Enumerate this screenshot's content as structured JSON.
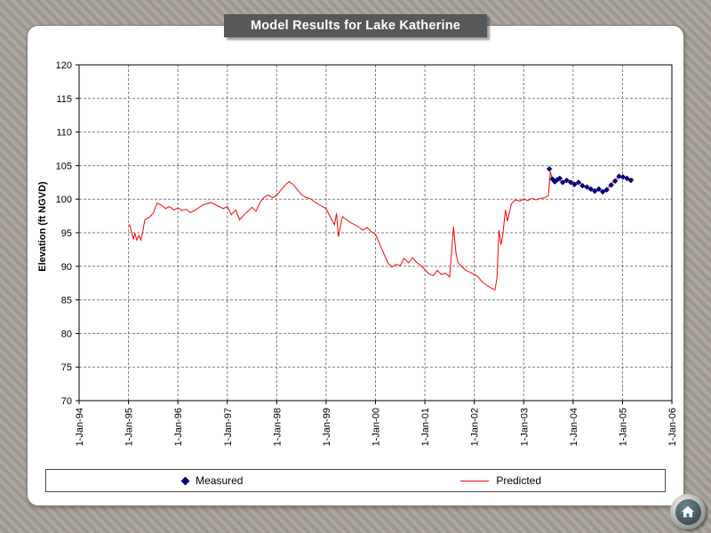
{
  "colors": {
    "banner_bg": "#57585A",
    "panel_bg": "#FFFFFF",
    "predicted": "#FF0000",
    "measured": "#000080"
  },
  "icons": {
    "home": "house-glyph"
  },
  "chart_data": {
    "type": "line",
    "title": "Model Results for Lake Katherine",
    "ylabel": "Elevation (ft NGVD)",
    "xlabel": "",
    "ylim": [
      70,
      120
    ],
    "ytick_step": 5,
    "xlim": [
      1994,
      2006
    ],
    "x_encoding": "decimal_year",
    "x_ticks": [
      "1-Jan-94",
      "1-Jan-95",
      "1-Jan-96",
      "1-Jan-97",
      "1-Jan-98",
      "1-Jan-99",
      "1-Jan-00",
      "1-Jan-01",
      "1-Jan-02",
      "1-Jan-03",
      "1-Jan-04",
      "1-Jan-05",
      "1-Jan-06"
    ],
    "grid": "dashed",
    "legend_position": "bottom",
    "series": [
      {
        "name": "Predicted",
        "type": "line",
        "color": "#FF0000",
        "points": [
          [
            1995.02,
            96.3
          ],
          [
            1995.06,
            95.1
          ],
          [
            1995.1,
            94.1
          ],
          [
            1995.13,
            94.9
          ],
          [
            1995.17,
            93.9
          ],
          [
            1995.21,
            94.6
          ],
          [
            1995.25,
            93.9
          ],
          [
            1995.29,
            95.2
          ],
          [
            1995.33,
            96.9
          ],
          [
            1995.42,
            97.3
          ],
          [
            1995.5,
            97.9
          ],
          [
            1995.58,
            99.4
          ],
          [
            1995.67,
            99.1
          ],
          [
            1995.75,
            98.6
          ],
          [
            1995.83,
            98.9
          ],
          [
            1995.92,
            98.4
          ],
          [
            1996.0,
            98.7
          ],
          [
            1996.08,
            98.3
          ],
          [
            1996.17,
            98.5
          ],
          [
            1996.25,
            98.0
          ],
          [
            1996.33,
            98.3
          ],
          [
            1996.42,
            98.7
          ],
          [
            1996.5,
            99.1
          ],
          [
            1996.58,
            99.3
          ],
          [
            1996.67,
            99.5
          ],
          [
            1996.75,
            99.2
          ],
          [
            1996.83,
            98.9
          ],
          [
            1996.92,
            98.6
          ],
          [
            1997.0,
            98.9
          ],
          [
            1997.08,
            97.7
          ],
          [
            1997.17,
            98.4
          ],
          [
            1997.25,
            96.9
          ],
          [
            1997.33,
            97.6
          ],
          [
            1997.42,
            98.2
          ],
          [
            1997.5,
            98.8
          ],
          [
            1997.58,
            98.2
          ],
          [
            1997.67,
            99.6
          ],
          [
            1997.75,
            100.3
          ],
          [
            1997.83,
            100.6
          ],
          [
            1997.92,
            100.2
          ],
          [
            1998.0,
            100.6
          ],
          [
            1998.08,
            101.3
          ],
          [
            1998.17,
            102.1
          ],
          [
            1998.25,
            102.6
          ],
          [
            1998.33,
            102.2
          ],
          [
            1998.42,
            101.4
          ],
          [
            1998.5,
            100.7
          ],
          [
            1998.58,
            100.3
          ],
          [
            1998.67,
            100.1
          ],
          [
            1998.75,
            99.7
          ],
          [
            1998.83,
            99.3
          ],
          [
            1998.92,
            98.9
          ],
          [
            1999.0,
            98.6
          ],
          [
            1999.08,
            97.4
          ],
          [
            1999.17,
            96.2
          ],
          [
            1999.21,
            97.9
          ],
          [
            1999.25,
            94.4
          ],
          [
            1999.33,
            97.4
          ],
          [
            1999.42,
            96.9
          ],
          [
            1999.5,
            96.5
          ],
          [
            1999.58,
            96.2
          ],
          [
            1999.67,
            95.8
          ],
          [
            1999.75,
            95.4
          ],
          [
            1999.83,
            95.8
          ],
          [
            1999.92,
            95.1
          ],
          [
            2000.0,
            94.8
          ],
          [
            2000.08,
            93.4
          ],
          [
            2000.17,
            91.9
          ],
          [
            2000.25,
            90.5
          ],
          [
            2000.33,
            89.9
          ],
          [
            2000.42,
            90.3
          ],
          [
            2000.5,
            90.1
          ],
          [
            2000.58,
            91.2
          ],
          [
            2000.67,
            90.5
          ],
          [
            2000.75,
            91.3
          ],
          [
            2000.83,
            90.6
          ],
          [
            2000.92,
            90.1
          ],
          [
            2001.0,
            89.5
          ],
          [
            2001.08,
            88.9
          ],
          [
            2001.17,
            88.6
          ],
          [
            2001.25,
            89.4
          ],
          [
            2001.33,
            88.8
          ],
          [
            2001.42,
            89.0
          ],
          [
            2001.5,
            88.4
          ],
          [
            2001.58,
            95.9
          ],
          [
            2001.63,
            91.9
          ],
          [
            2001.67,
            90.6
          ],
          [
            2001.75,
            89.9
          ],
          [
            2001.83,
            89.4
          ],
          [
            2001.92,
            89.1
          ],
          [
            2002.0,
            88.8
          ],
          [
            2002.08,
            88.4
          ],
          [
            2002.17,
            87.6
          ],
          [
            2002.25,
            87.2
          ],
          [
            2002.33,
            86.8
          ],
          [
            2002.42,
            86.5
          ],
          [
            2002.46,
            88.3
          ],
          [
            2002.5,
            95.4
          ],
          [
            2002.54,
            93.2
          ],
          [
            2002.58,
            94.9
          ],
          [
            2002.63,
            98.4
          ],
          [
            2002.67,
            96.7
          ],
          [
            2002.75,
            99.3
          ],
          [
            2002.83,
            99.9
          ],
          [
            2002.92,
            99.7
          ],
          [
            2003.0,
            100.0
          ],
          [
            2003.08,
            99.8
          ],
          [
            2003.17,
            100.1
          ],
          [
            2003.25,
            99.9
          ],
          [
            2003.33,
            100.1
          ],
          [
            2003.42,
            100.2
          ],
          [
            2003.5,
            100.5
          ],
          [
            2003.54,
            104.1
          ],
          [
            2003.58,
            102.9
          ],
          [
            2003.63,
            102.5
          ],
          [
            2003.7,
            102.9
          ],
          [
            2003.79,
            102.6
          ],
          [
            2003.87,
            102.9
          ],
          [
            2003.95,
            102.6
          ],
          [
            2004.03,
            102.3
          ],
          [
            2004.11,
            102.6
          ],
          [
            2004.19,
            102.1
          ],
          [
            2004.28,
            101.8
          ],
          [
            2004.36,
            101.5
          ],
          [
            2004.44,
            101.2
          ],
          [
            2004.52,
            101.4
          ],
          [
            2004.6,
            101.1
          ],
          [
            2004.68,
            101.5
          ],
          [
            2004.77,
            102.2
          ],
          [
            2004.85,
            102.8
          ],
          [
            2004.93,
            103.5
          ],
          [
            2005.01,
            103.2
          ],
          [
            2005.09,
            103.0
          ],
          [
            2005.17,
            102.9
          ],
          [
            2005.22,
            103.1
          ]
        ]
      },
      {
        "name": "Measured",
        "type": "scatter",
        "marker": "diamond",
        "color": "#000080",
        "points": [
          [
            2003.52,
            104.5
          ],
          [
            2003.58,
            103.0
          ],
          [
            2003.63,
            102.6
          ],
          [
            2003.68,
            102.9
          ],
          [
            2003.73,
            103.1
          ],
          [
            2003.79,
            102.5
          ],
          [
            2003.87,
            102.8
          ],
          [
            2003.95,
            102.5
          ],
          [
            2004.03,
            102.2
          ],
          [
            2004.11,
            102.5
          ],
          [
            2004.19,
            102.0
          ],
          [
            2004.28,
            101.8
          ],
          [
            2004.36,
            101.5
          ],
          [
            2004.44,
            101.2
          ],
          [
            2004.52,
            101.5
          ],
          [
            2004.6,
            101.1
          ],
          [
            2004.68,
            101.4
          ],
          [
            2004.77,
            102.1
          ],
          [
            2004.85,
            102.7
          ],
          [
            2004.93,
            103.4
          ],
          [
            2005.01,
            103.3
          ],
          [
            2005.09,
            103.1
          ],
          [
            2005.17,
            102.8
          ]
        ]
      }
    ]
  }
}
